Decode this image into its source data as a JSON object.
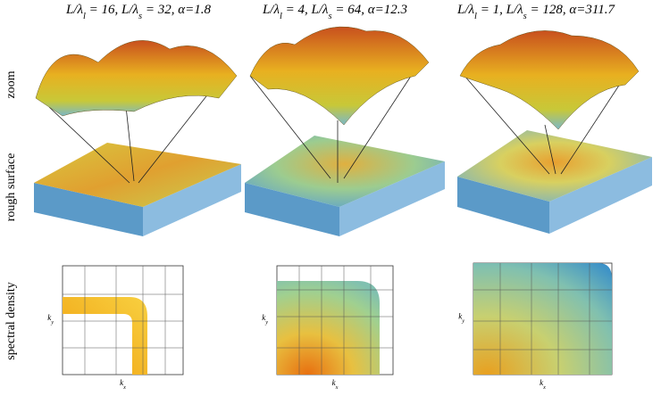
{
  "columns": [
    {
      "title": [
        {
          "text": "L/λ"
        },
        {
          "sub": "l"
        },
        {
          "text": " = 16,  L/λ"
        },
        {
          "sub": "s"
        },
        {
          "text": " = 32, α=1.8"
        }
      ],
      "x_label": {
        "text": "k",
        "sub": "x"
      },
      "y_label": {
        "text": "k",
        "sub": "y"
      }
    },
    {
      "title": [
        {
          "text": "L/λ"
        },
        {
          "sub": "l"
        },
        {
          "text": " = 4,  L/λ"
        },
        {
          "sub": "s"
        },
        {
          "text": " = 64,  α=12.3"
        }
      ],
      "x_label": {
        "text": "k",
        "sub": "x"
      },
      "y_label": {
        "text": "k",
        "sub": "y"
      }
    },
    {
      "title": [
        {
          "text": "L/λ"
        },
        {
          "sub": "l"
        },
        {
          "text": " = 1,  L/λ"
        },
        {
          "sub": "s"
        },
        {
          "text": " = 128,  α=311.7"
        }
      ],
      "x_label": {
        "text": "k",
        "sub": "x"
      },
      "y_label": {
        "text": "k",
        "sub": "y"
      }
    }
  ],
  "rows": [
    "zoom",
    "rough surface",
    "spectral density"
  ]
}
